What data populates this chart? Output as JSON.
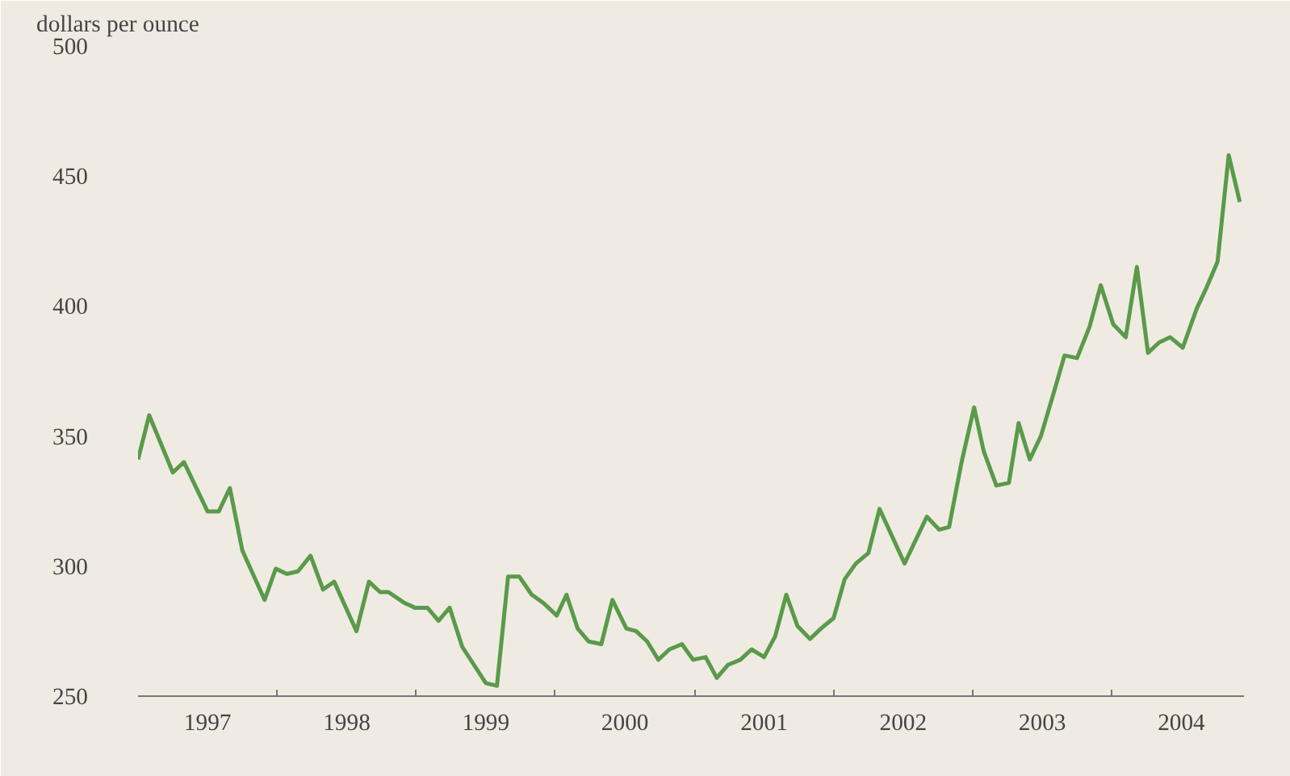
{
  "chart_data": {
    "type": "line",
    "ylabel": "dollars per ounce",
    "x": [
      1997.0,
      1997.08,
      1997.25,
      1997.33,
      1997.5,
      1997.58,
      1997.66,
      1997.75,
      1997.91,
      1997.99,
      1998.07,
      1998.15,
      1998.24,
      1998.33,
      1998.41,
      1998.57,
      1998.66,
      1998.74,
      1998.8,
      1998.91,
      1998.99,
      1999.08,
      1999.16,
      1999.24,
      1999.33,
      1999.5,
      1999.58,
      1999.66,
      1999.74,
      1999.83,
      1999.91,
      2000.01,
      2000.08,
      2000.16,
      2000.24,
      2000.33,
      2000.41,
      2000.51,
      2000.58,
      2000.66,
      2000.74,
      2000.82,
      2000.91,
      2000.99,
      2001.08,
      2001.16,
      2001.24,
      2001.33,
      2001.41,
      2001.5,
      2001.58,
      2001.66,
      2001.74,
      2001.83,
      2001.91,
      2002.0,
      2002.08,
      2002.16,
      2002.25,
      2002.33,
      2002.51,
      2002.67,
      2002.76,
      2002.83,
      2002.92,
      2003.01,
      2003.08,
      2003.17,
      2003.26,
      2003.33,
      2003.41,
      2003.49,
      2003.59,
      2003.66,
      2003.75,
      2003.84,
      2003.92,
      2004.01,
      2004.1,
      2004.18,
      2004.26,
      2004.34,
      2004.42,
      2004.51,
      2004.61,
      2004.68,
      2004.76,
      2004.84,
      2004.92
    ],
    "series": [
      {
        "color": "#5a9a4a",
        "values": [
          341,
          358,
          336,
          340,
          321,
          321,
          330,
          306,
          287,
          299,
          297,
          298,
          304,
          291,
          294,
          275,
          294,
          290,
          290,
          286,
          284,
          284,
          279,
          284,
          269,
          255,
          254,
          296,
          296,
          289,
          286,
          281,
          289,
          276,
          271,
          270,
          287,
          276,
          275,
          271,
          264,
          268,
          270,
          264,
          265,
          257,
          262,
          264,
          268,
          265,
          273,
          289,
          277,
          272,
          276,
          280,
          295,
          301,
          305,
          322,
          301,
          319,
          314,
          315,
          340,
          361,
          344,
          331,
          332,
          355,
          341,
          350,
          368,
          381,
          380,
          392,
          408,
          393,
          388,
          415,
          382,
          386,
          388,
          384,
          399,
          407,
          417,
          458,
          440
        ]
      }
    ],
    "xlim": [
      1997,
      2004.95
    ],
    "xticks": [
      {
        "value": 1997.5,
        "label": "1997"
      },
      {
        "value": 1998.5,
        "label": "1998"
      },
      {
        "value": 1999.5,
        "label": "1999"
      },
      {
        "value": 2000.5,
        "label": "2000"
      },
      {
        "value": 2001.5,
        "label": "2001"
      },
      {
        "value": 2002.5,
        "label": "2002"
      },
      {
        "value": 2003.5,
        "label": "2003"
      },
      {
        "value": 2004.5,
        "label": "2004"
      },
      {
        "value": 1998,
        "label": null
      },
      {
        "value": 1999,
        "label": null
      },
      {
        "value": 2000,
        "label": null
      },
      {
        "value": 2001,
        "label": null
      },
      {
        "value": 2002,
        "label": null
      },
      {
        "value": 2003,
        "label": null
      },
      {
        "value": 2004,
        "label": null
      }
    ],
    "ylim": [
      250,
      500
    ],
    "yticks": [
      250,
      300,
      350,
      400,
      450,
      500
    ],
    "grid": false,
    "marker": "none",
    "line_style": "solid"
  }
}
